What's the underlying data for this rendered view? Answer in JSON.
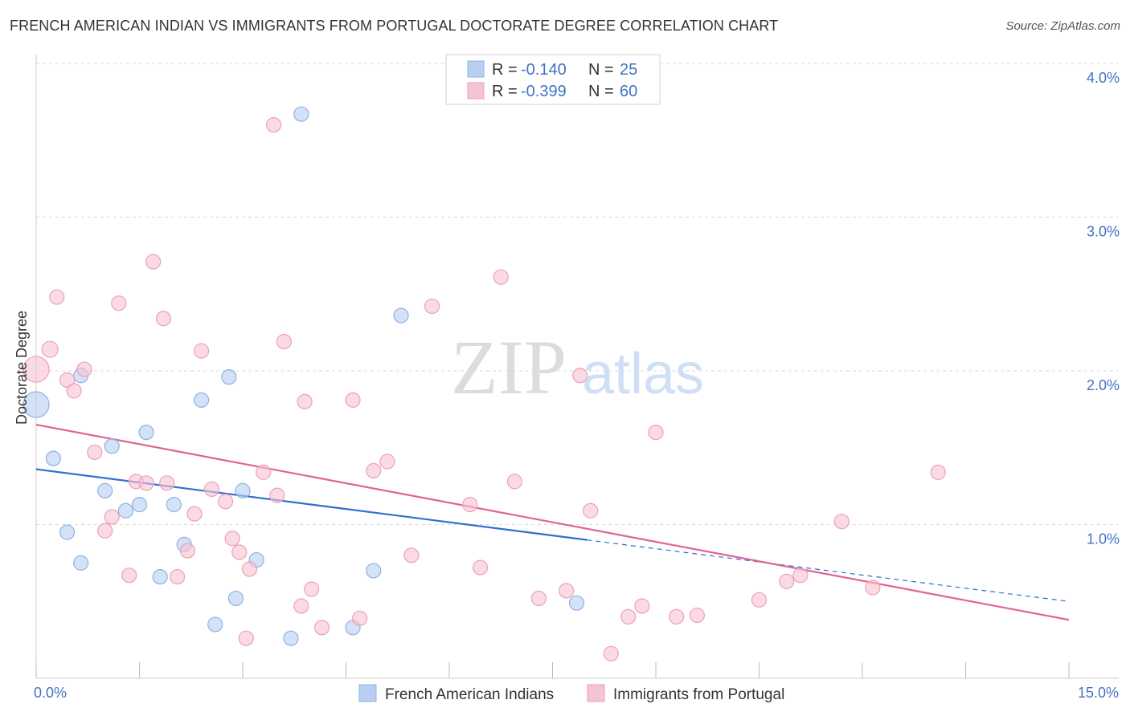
{
  "chart_data": {
    "type": "scatter",
    "title": "FRENCH AMERICAN INDIAN VS IMMIGRANTS FROM PORTUGAL DOCTORATE DEGREE CORRELATION CHART",
    "source": "Source: ZipAtlas.com",
    "ylabel": "Doctorate Degree",
    "xlabel": "",
    "xlim": [
      0,
      15
    ],
    "ylim": [
      0,
      4.1
    ],
    "x_tick_labels": {
      "min": "0.0%",
      "max": "15.0%"
    },
    "y_ticks": [
      {
        "value": 1,
        "label": "1.0%"
      },
      {
        "value": 2,
        "label": "2.0%"
      },
      {
        "value": 3,
        "label": "3.0%"
      },
      {
        "value": 4,
        "label": "4.0%"
      }
    ],
    "watermark": {
      "zip": "ZIP",
      "atlas": "atlas"
    },
    "colors": {
      "blue_fill": "#b8cff2",
      "blue_stroke": "#8fb0e6",
      "blue_line": "#2e6fd1",
      "pink_fill": "#f6c3d2",
      "pink_stroke": "#ee9fb7",
      "pink_line": "#e0648f",
      "grid": "#d8d8d8",
      "label_blue": "#4472c4"
    },
    "legend": [
      {
        "series": "blue",
        "r_label": "R = ",
        "r_value": "-0.140",
        "n_label": "N = ",
        "n_value": "25"
      },
      {
        "series": "pink",
        "r_label": "R = ",
        "r_value": "-0.399",
        "n_label": "N = ",
        "n_value": "60"
      }
    ],
    "series": [
      {
        "name": "French American Indians",
        "key": "blue",
        "trend": {
          "x0": 0,
          "y0": 1.36,
          "x1": 8.0,
          "y1": 0.9,
          "dash_to_x": 15,
          "dash_to_y": 0.5
        },
        "points": [
          [
            0.0,
            1.78,
            16
          ],
          [
            0.25,
            1.43,
            9
          ],
          [
            0.45,
            0.95,
            9
          ],
          [
            0.65,
            0.75,
            9
          ],
          [
            0.65,
            1.97,
            9
          ],
          [
            1.0,
            1.22,
            9
          ],
          [
            1.1,
            1.51,
            9
          ],
          [
            1.3,
            1.09,
            9
          ],
          [
            1.5,
            1.13,
            9
          ],
          [
            1.6,
            1.6,
            9
          ],
          [
            1.8,
            0.66,
            9
          ],
          [
            2.0,
            1.13,
            9
          ],
          [
            2.15,
            0.87,
            9
          ],
          [
            2.4,
            1.81,
            9
          ],
          [
            2.6,
            0.35,
            9
          ],
          [
            2.8,
            1.96,
            9
          ],
          [
            2.9,
            0.52,
            9
          ],
          [
            3.0,
            1.22,
            9
          ],
          [
            3.2,
            0.77,
            9
          ],
          [
            3.7,
            0.26,
            9
          ],
          [
            3.85,
            3.67,
            9
          ],
          [
            4.6,
            0.33,
            9
          ],
          [
            4.9,
            0.7,
            9
          ],
          [
            5.3,
            2.36,
            9
          ],
          [
            7.85,
            0.49,
            9
          ]
        ]
      },
      {
        "name": "Immigrants from Portugal",
        "key": "pink",
        "trend": {
          "x0": 0,
          "y0": 1.65,
          "x1": 15,
          "y1": 0.38
        },
        "points": [
          [
            0.0,
            2.01,
            16
          ],
          [
            0.2,
            2.14,
            10
          ],
          [
            0.3,
            2.48,
            9
          ],
          [
            0.45,
            1.94,
            9
          ],
          [
            0.55,
            1.87,
            9
          ],
          [
            0.7,
            2.01,
            9
          ],
          [
            0.85,
            1.47,
            9
          ],
          [
            1.0,
            0.96,
            9
          ],
          [
            1.1,
            1.05,
            9
          ],
          [
            1.2,
            2.44,
            9
          ],
          [
            1.35,
            0.67,
            9
          ],
          [
            1.45,
            1.28,
            9
          ],
          [
            1.6,
            1.27,
            9
          ],
          [
            1.7,
            2.71,
            9
          ],
          [
            1.85,
            2.34,
            9
          ],
          [
            1.9,
            1.27,
            9
          ],
          [
            2.05,
            0.66,
            9
          ],
          [
            2.2,
            0.83,
            9
          ],
          [
            2.3,
            1.07,
            9
          ],
          [
            2.4,
            2.13,
            9
          ],
          [
            2.55,
            1.23,
            9
          ],
          [
            2.75,
            1.15,
            9
          ],
          [
            2.85,
            0.91,
            9
          ],
          [
            2.95,
            0.82,
            9
          ],
          [
            3.05,
            0.26,
            9
          ],
          [
            3.1,
            0.71,
            9
          ],
          [
            3.3,
            1.34,
            9
          ],
          [
            3.45,
            3.6,
            9
          ],
          [
            3.5,
            1.19,
            9
          ],
          [
            3.6,
            2.19,
            9
          ],
          [
            3.85,
            0.47,
            9
          ],
          [
            3.9,
            1.8,
            9
          ],
          [
            4.0,
            0.58,
            9
          ],
          [
            4.15,
            0.33,
            9
          ],
          [
            4.6,
            1.81,
            9
          ],
          [
            4.7,
            0.39,
            9
          ],
          [
            4.9,
            1.35,
            9
          ],
          [
            5.1,
            1.41,
            9
          ],
          [
            5.45,
            0.8,
            9
          ],
          [
            5.75,
            2.42,
            9
          ],
          [
            6.3,
            1.13,
            9
          ],
          [
            6.45,
            0.72,
            9
          ],
          [
            6.75,
            2.61,
            9
          ],
          [
            6.95,
            1.28,
            9
          ],
          [
            7.3,
            0.52,
            9
          ],
          [
            7.7,
            0.57,
            9
          ],
          [
            7.9,
            1.97,
            9
          ],
          [
            8.05,
            1.09,
            9
          ],
          [
            8.35,
            0.16,
            9
          ],
          [
            8.6,
            0.4,
            9
          ],
          [
            8.8,
            0.47,
            9
          ],
          [
            9.0,
            1.6,
            9
          ],
          [
            9.3,
            0.4,
            9
          ],
          [
            9.6,
            0.41,
            9
          ],
          [
            10.5,
            0.51,
            9
          ],
          [
            10.9,
            0.63,
            9
          ],
          [
            11.1,
            0.67,
            9
          ],
          [
            11.7,
            1.02,
            9
          ],
          [
            12.15,
            0.59,
            9
          ],
          [
            13.1,
            1.34,
            9
          ]
        ]
      }
    ]
  }
}
